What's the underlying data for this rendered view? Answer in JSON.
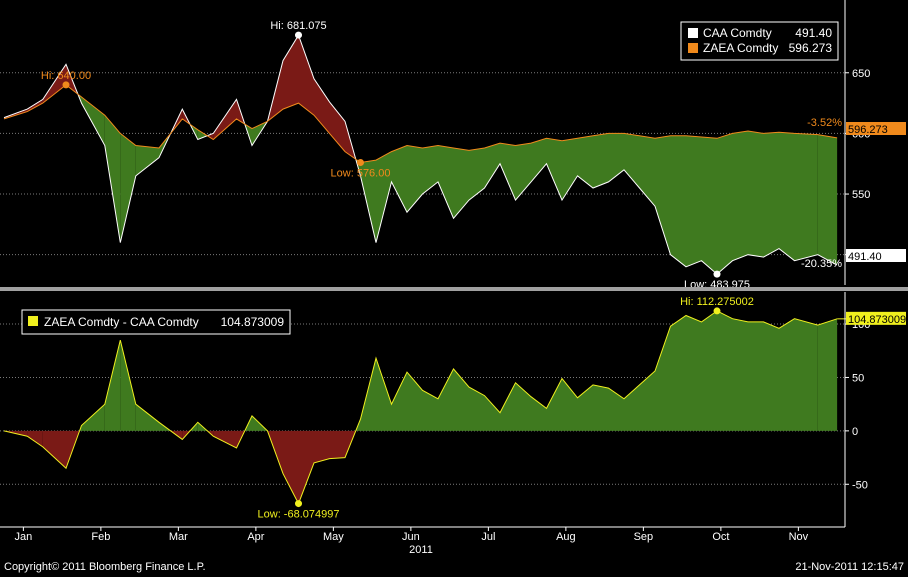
{
  "copyright": "Copyright© 2011 Bloomberg Finance L.P.",
  "timestamp": "21-Nov-2011 12:15:47",
  "colors": {
    "background": "#000000",
    "spread_positive": "#3f7a1f",
    "spread_negative": "#7a1a16",
    "caa_line": "#ffffff",
    "zaea_line": "#f08a1c",
    "spread_line": "#f0f01e",
    "grid": "#7a7a7a",
    "divider": "#a0a0a0"
  },
  "chart_data": [
    {
      "type": "line",
      "panel": "top",
      "legend": [
        {
          "name": "CAA Comdty",
          "value": "491.40",
          "color": "#ffffff"
        },
        {
          "name": "ZAEA Comdty",
          "value": "596.273",
          "color": "#f08a1c"
        }
      ],
      "legend_position": "top-right",
      "ylim": [
        475,
        710
      ],
      "yticks": [
        "650",
        "600",
        "550",
        "500"
      ],
      "grid": true,
      "x_month_ticks": [
        "Jan",
        "Feb",
        "Mar",
        "Apr",
        "May",
        "Jun",
        "Jul",
        "Aug",
        "Sep",
        "Oct",
        "Nov"
      ],
      "year_label": "2011",
      "series": [
        {
          "name": "CAA Comdty",
          "color": "#ffffff",
          "x": [
            0,
            0.3,
            0.5,
            0.8,
            1.0,
            1.3,
            1.5,
            1.7,
            2.0,
            2.3,
            2.5,
            2.7,
            3.0,
            3.2,
            3.4,
            3.6,
            3.8,
            4.0,
            4.2,
            4.4,
            4.6,
            4.8,
            5.0,
            5.2,
            5.4,
            5.6,
            5.8,
            6.0,
            6.2,
            6.4,
            6.6,
            6.8,
            7.0,
            7.2,
            7.4,
            7.6,
            7.8,
            8.0,
            8.2,
            8.4,
            8.6,
            8.8,
            9.0,
            9.2,
            9.4,
            9.6,
            9.8,
            10.0,
            10.2,
            10.5,
            10.75
          ],
          "values": [
            613,
            620,
            628,
            657,
            625,
            590,
            510,
            565,
            580,
            620,
            595,
            600,
            628,
            590,
            610,
            660,
            681,
            645,
            626,
            610,
            565,
            510,
            560,
            535,
            550,
            560,
            530,
            545,
            555,
            575,
            545,
            560,
            575,
            545,
            565,
            555,
            560,
            570,
            555,
            540,
            500,
            490,
            495,
            484,
            495,
            500,
            498,
            505,
            495,
            500,
            491.4
          ]
        },
        {
          "name": "ZAEA Comdty",
          "color": "#f08a1c",
          "x": [
            0,
            0.3,
            0.5,
            0.8,
            1.0,
            1.3,
            1.5,
            1.7,
            2.0,
            2.3,
            2.5,
            2.7,
            3.0,
            3.2,
            3.4,
            3.6,
            3.8,
            4.0,
            4.2,
            4.4,
            4.6,
            4.8,
            5.0,
            5.2,
            5.4,
            5.6,
            5.8,
            6.0,
            6.2,
            6.4,
            6.6,
            6.8,
            7.0,
            7.2,
            7.4,
            7.6,
            7.8,
            8.0,
            8.2,
            8.4,
            8.6,
            8.8,
            9.0,
            9.2,
            9.4,
            9.6,
            9.8,
            10.0,
            10.2,
            10.5,
            10.75
          ],
          "values": [
            612,
            618,
            625,
            640,
            630,
            615,
            600,
            590,
            588,
            612,
            603,
            595,
            612,
            604,
            610,
            620,
            625,
            615,
            600,
            585,
            576,
            578,
            585,
            590,
            588,
            590,
            588,
            586,
            588,
            592,
            590,
            592,
            596,
            594,
            596,
            598,
            600,
            600,
            598,
            596,
            598,
            598,
            597,
            596,
            600,
            602,
            600,
            601,
            600,
            599,
            596.273
          ]
        }
      ],
      "annotations": [
        {
          "text": "Hi: 681.075",
          "x": 3.8,
          "y": 681.075,
          "color": "#ffffff"
        },
        {
          "text": "Hi: 640.00",
          "x": 0.8,
          "y": 640,
          "color": "#f08a1c"
        },
        {
          "text": "Low: 576.00",
          "x": 4.6,
          "y": 576,
          "color": "#f08a1c"
        },
        {
          "text": "Low: 483.975",
          "x": 9.2,
          "y": 483.975,
          "color": "#ffffff"
        }
      ],
      "right_labels": [
        {
          "text": "-3.52%",
          "color": "#f08a1c"
        },
        {
          "text": "596.273",
          "bg": "#f08a1c",
          "color": "#000000"
        },
        {
          "text": "-20.35%",
          "color": "#ffffff"
        },
        {
          "text": "491.40",
          "bg": "#ffffff",
          "color": "#000000"
        }
      ]
    },
    {
      "type": "area",
      "panel": "bottom",
      "legend": [
        {
          "name": "ZAEA Comdty - CAA Comdty",
          "value": "104.873009",
          "color": "#f0f01e"
        }
      ],
      "legend_position": "top-left",
      "ylim": [
        -90,
        130
      ],
      "yticks": [
        "100",
        "50",
        "0",
        "-50"
      ],
      "grid": true,
      "series": [
        {
          "name": "ZAEA Comdty - CAA Comdty",
          "color": "#f0f01e",
          "x": [
            0,
            0.3,
            0.5,
            0.8,
            1.0,
            1.3,
            1.5,
            1.7,
            2.0,
            2.3,
            2.5,
            2.7,
            3.0,
            3.2,
            3.4,
            3.6,
            3.8,
            4.0,
            4.2,
            4.4,
            4.6,
            4.8,
            5.0,
            5.2,
            5.4,
            5.6,
            5.8,
            6.0,
            6.2,
            6.4,
            6.6,
            6.8,
            7.0,
            7.2,
            7.4,
            7.6,
            7.8,
            8.0,
            8.2,
            8.4,
            8.6,
            8.8,
            9.0,
            9.2,
            9.4,
            9.6,
            9.8,
            10.0,
            10.2,
            10.5,
            10.75
          ],
          "values": [
            0,
            -5,
            -15,
            -35,
            5,
            25,
            85,
            25,
            8,
            -8,
            8,
            -5,
            -16,
            14,
            0,
            -40,
            -68.07,
            -30,
            -26,
            -25,
            11,
            68,
            25,
            55,
            38,
            30,
            58,
            41,
            33,
            17,
            45,
            32,
            21,
            49,
            31,
            43,
            40,
            30,
            43,
            56,
            98,
            108,
            102,
            112.28,
            105,
            102,
            102,
            96,
            105,
            99,
            104.87
          ]
        }
      ],
      "annotations": [
        {
          "text": "Hi: 112.275002",
          "x": 9.2,
          "y": 112.275002,
          "color": "#f0f01e"
        },
        {
          "text": "Low: -68.074997",
          "x": 3.8,
          "y": -68.074997,
          "color": "#f0f01e"
        }
      ],
      "right_labels": [
        {
          "text": "104.873009",
          "bg": "#f0f01e",
          "color": "#000000"
        }
      ]
    }
  ]
}
